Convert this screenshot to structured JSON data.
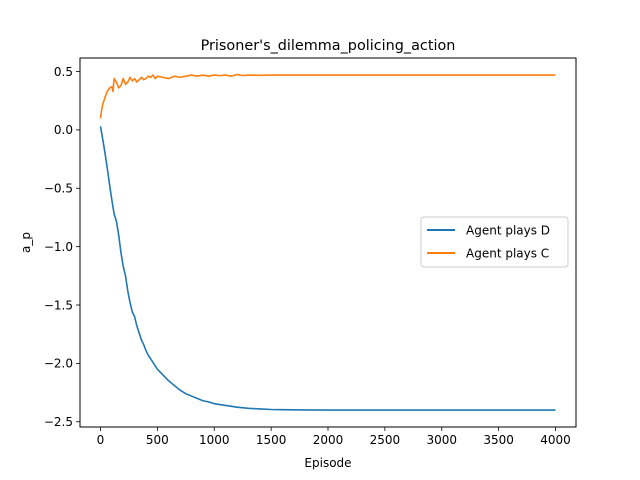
{
  "chart_data": {
    "type": "line",
    "title": "Prisoner's_dilemma_policing_action",
    "xlabel": "Episode",
    "ylabel": "a_p",
    "xlim": [
      -180,
      4180
    ],
    "ylim": [
      -2.545,
      0.616
    ],
    "xticks": [
      0,
      500,
      1000,
      1500,
      2000,
      2500,
      3000,
      3500,
      4000
    ],
    "xtick_labels": [
      "0",
      "500",
      "1000",
      "1500",
      "2000",
      "2500",
      "3000",
      "3500",
      "4000"
    ],
    "yticks": [
      0.5,
      0.0,
      -0.5,
      -1.0,
      -1.5,
      -2.0,
      -2.5
    ],
    "ytick_labels": [
      "0.5",
      "0.0",
      "−0.5",
      "−1.0",
      "−1.5",
      "−2.0",
      "−2.5"
    ],
    "grid": false,
    "legend_position": "center-right",
    "series": [
      {
        "name": "Agent plays D",
        "color": "#1f77b4",
        "x": [
          0,
          20,
          40,
          60,
          80,
          100,
          120,
          140,
          160,
          180,
          200,
          220,
          240,
          260,
          280,
          300,
          320,
          340,
          360,
          380,
          400,
          420,
          440,
          460,
          480,
          500,
          550,
          600,
          650,
          700,
          750,
          800,
          850,
          900,
          950,
          1000,
          1100,
          1200,
          1300,
          1400,
          1500,
          1600,
          1800,
          2000,
          2500,
          3000,
          3500,
          4000
        ],
        "y": [
          0.03,
          -0.08,
          -0.2,
          -0.33,
          -0.47,
          -0.6,
          -0.72,
          -0.78,
          -0.9,
          -1.05,
          -1.17,
          -1.25,
          -1.38,
          -1.48,
          -1.56,
          -1.6,
          -1.68,
          -1.74,
          -1.8,
          -1.84,
          -1.89,
          -1.93,
          -1.96,
          -1.99,
          -2.02,
          -2.05,
          -2.1,
          -2.15,
          -2.19,
          -2.23,
          -2.26,
          -2.28,
          -2.3,
          -2.32,
          -2.33,
          -2.345,
          -2.36,
          -2.375,
          -2.385,
          -2.39,
          -2.395,
          -2.397,
          -2.399,
          -2.4,
          -2.4,
          -2.4,
          -2.4,
          -2.4
        ]
      },
      {
        "name": "Agent plays C",
        "color": "#ff7f0e",
        "x": [
          0,
          10,
          20,
          40,
          60,
          80,
          100,
          110,
          120,
          140,
          160,
          180,
          200,
          220,
          240,
          260,
          280,
          300,
          320,
          340,
          360,
          380,
          400,
          420,
          440,
          460,
          480,
          500,
          550,
          600,
          650,
          700,
          750,
          800,
          850,
          900,
          950,
          1000,
          1050,
          1100,
          1150,
          1200,
          1250,
          1300,
          1400,
          1500,
          1600,
          2000,
          2500,
          3000,
          3500,
          4000
        ],
        "y": [
          0.1,
          0.17,
          0.22,
          0.28,
          0.33,
          0.36,
          0.37,
          0.33,
          0.44,
          0.41,
          0.36,
          0.38,
          0.44,
          0.39,
          0.41,
          0.45,
          0.42,
          0.44,
          0.41,
          0.43,
          0.45,
          0.43,
          0.44,
          0.46,
          0.45,
          0.47,
          0.44,
          0.46,
          0.45,
          0.44,
          0.46,
          0.45,
          0.46,
          0.47,
          0.46,
          0.47,
          0.46,
          0.47,
          0.465,
          0.47,
          0.46,
          0.475,
          0.465,
          0.47,
          0.468,
          0.47,
          0.47,
          0.47,
          0.47,
          0.47,
          0.47,
          0.47
        ]
      }
    ]
  }
}
